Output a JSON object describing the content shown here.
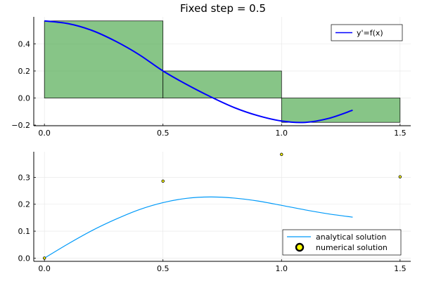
{
  "chart_data": [
    {
      "type": "bar",
      "title": "Fixed step = 0.5",
      "xlabel": "",
      "ylabel": "",
      "xlim": [
        -0.045,
        1.545
      ],
      "ylim": [
        -0.205,
        0.6
      ],
      "xticks": [
        0.0,
        0.5,
        1.0,
        1.5
      ],
      "xtick_labels": [
        "0.0",
        "0.5",
        "1.0",
        "1.5"
      ],
      "yticks": [
        -0.2,
        0.0,
        0.2,
        0.4
      ],
      "ytick_labels": [
        "−0.2",
        "0.0",
        "0.2",
        "0.4"
      ],
      "grid": true,
      "legend_position": "top-right",
      "bars": {
        "name": "",
        "x_left": [
          0.0,
          0.5,
          1.0
        ],
        "x_right": [
          0.5,
          1.0,
          1.5
        ],
        "heights": [
          0.57,
          0.2,
          -0.18
        ],
        "color": "#3da13d"
      },
      "series": [
        {
          "name": "y'=f(x)",
          "type": "line",
          "color": "#0000ff",
          "x": [
            0.0,
            0.1,
            0.2,
            0.3,
            0.4,
            0.5,
            0.6,
            0.7,
            0.8,
            0.9,
            1.0,
            1.1,
            1.2,
            1.3
          ],
          "y": [
            0.57,
            0.55,
            0.5,
            0.42,
            0.32,
            0.2,
            0.1,
            0.01,
            -0.07,
            -0.13,
            -0.17,
            -0.18,
            -0.15,
            -0.09
          ]
        }
      ]
    },
    {
      "type": "line",
      "title": "",
      "xlabel": "",
      "ylabel": "",
      "xlim": [
        -0.045,
        1.545
      ],
      "ylim": [
        -0.012,
        0.395
      ],
      "xticks": [
        0.0,
        0.5,
        1.0,
        1.5
      ],
      "xtick_labels": [
        "0.0",
        "0.5",
        "1.0",
        "1.5"
      ],
      "yticks": [
        0.0,
        0.1,
        0.2,
        0.3
      ],
      "ytick_labels": [
        "0.0",
        "0.1",
        "0.2",
        "0.3"
      ],
      "grid": true,
      "legend_position": "bottom-right",
      "series": [
        {
          "name": "analytical solution",
          "type": "line",
          "color": "#009af9",
          "x": [
            0.0,
            0.1,
            0.2,
            0.3,
            0.4,
            0.5,
            0.6,
            0.7,
            0.8,
            0.9,
            1.0,
            1.1,
            1.2,
            1.3
          ],
          "y": [
            0.0,
            0.053,
            0.102,
            0.144,
            0.18,
            0.206,
            0.222,
            0.227,
            0.223,
            0.212,
            0.196,
            0.179,
            0.164,
            0.152
          ]
        },
        {
          "name": "numerical solution",
          "type": "scatter",
          "color": "#ffff00",
          "x": [
            0.0,
            0.5,
            1.0,
            1.5
          ],
          "y": [
            0.0,
            0.286,
            0.385,
            0.302
          ]
        }
      ]
    }
  ]
}
